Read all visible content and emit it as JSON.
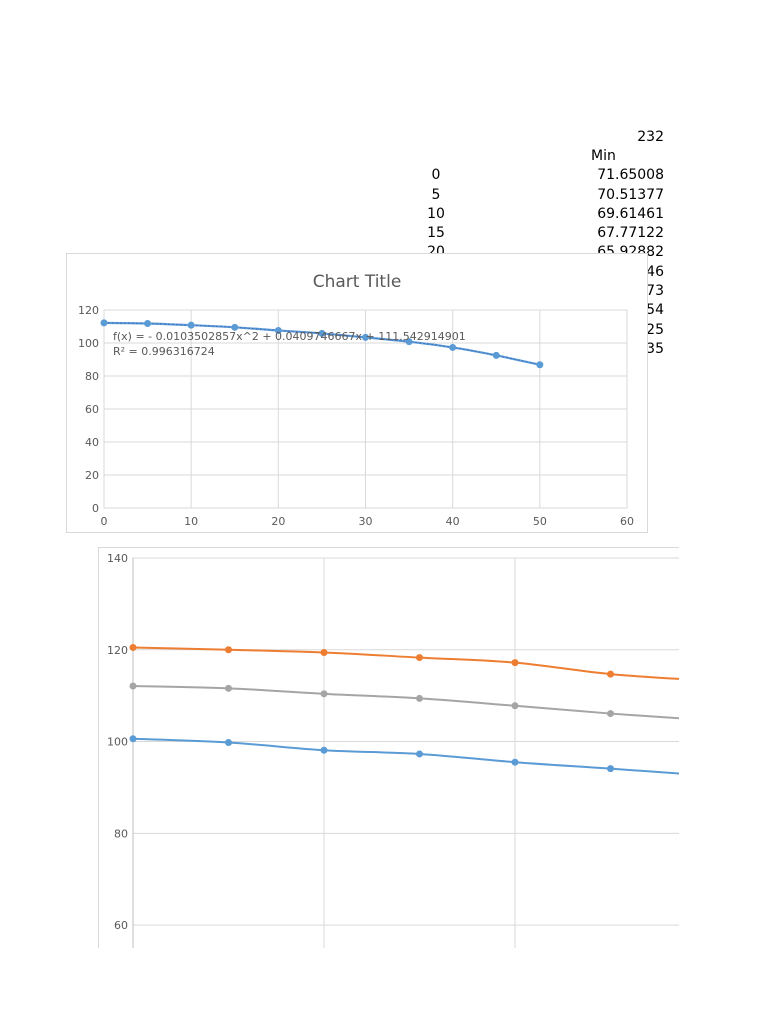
{
  "sheet": {
    "top_value": "232",
    "column_header": "Min",
    "rows": [
      {
        "x": "0",
        "min": "71.65008"
      },
      {
        "x": "5",
        "min": "70.51377"
      },
      {
        "x": "10",
        "min": "69.61461"
      },
      {
        "x": "15",
        "min": "67.77122"
      },
      {
        "x": "20",
        "min": "65.92882"
      },
      {
        "x": "",
        "min": "46"
      },
      {
        "x": "",
        "min": "73"
      },
      {
        "x": "",
        "min": "54"
      },
      {
        "x": "",
        "min": "25"
      },
      {
        "x": "",
        "min": "35"
      }
    ]
  },
  "chart_data": [
    {
      "type": "scatter",
      "title": "Chart Title",
      "xlim": [
        0,
        60
      ],
      "ylim": [
        0,
        120
      ],
      "x_ticks": [
        0,
        10,
        20,
        30,
        40,
        50,
        60
      ],
      "y_ticks": [
        0,
        20,
        40,
        60,
        80,
        100,
        120
      ],
      "grid": true,
      "series": [
        {
          "color": "#5b9bd5",
          "x": [
            0,
            5,
            10,
            15,
            20,
            25,
            30,
            35,
            40,
            45,
            50
          ],
          "y": [
            112.2,
            111.8,
            110.8,
            109.5,
            107.6,
            105.8,
            103.4,
            100.8,
            97.3,
            92.5,
            86.8
          ]
        }
      ],
      "trendline_equation": "f(x) =  - 0.0103502857x^2 + 0.0409746667x + 111.542914901",
      "r_squared": "R² = 0.996316724"
    },
    {
      "type": "line",
      "ylim": [
        50,
        140
      ],
      "y_ticks": [
        60,
        80,
        100,
        120,
        140
      ],
      "grid": true,
      "series": [
        {
          "color": "#ed7d31",
          "values": [
            120.5,
            120.0,
            119.4,
            118.3,
            117.2,
            114.7,
            113.3
          ]
        },
        {
          "color": "#a5a5a5",
          "values": [
            112.1,
            111.6,
            110.4,
            109.4,
            107.8,
            106.1,
            104.7
          ]
        },
        {
          "color": "#5b9bd5",
          "values": [
            100.6,
            99.8,
            98.1,
            97.3,
            95.5,
            94.1,
            92.6
          ]
        }
      ]
    }
  ]
}
